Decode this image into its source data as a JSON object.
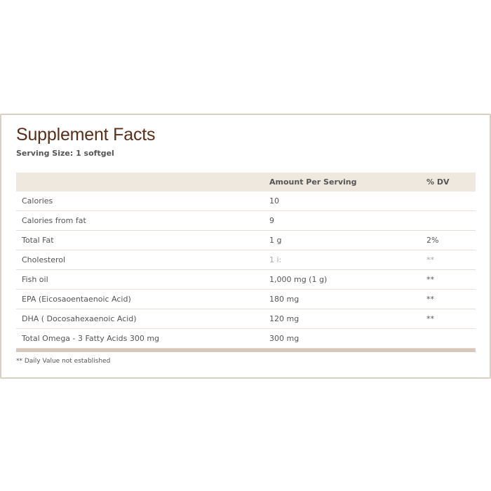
{
  "title": "Supplement Facts",
  "serving_size": "Serving Size: 1 softgel",
  "headers": [
    "",
    "Amount Per Serving",
    "% DV"
  ],
  "rows": [
    {
      "name": "Calories",
      "amount": "10",
      "dv": ""
    },
    {
      "name": "Calories from fat",
      "amount": "9",
      "dv": ""
    },
    {
      "name": "Total Fat",
      "amount": "1 g",
      "dv": "2%"
    },
    {
      "name": "Cholesterol",
      "amount": "1 i:",
      "dv": "**"
    },
    {
      "name": "Fish oil",
      "amount": "1,000 mg (1 g)",
      "dv": "**"
    },
    {
      "name": "EPA (Eicosaoentaenoic Acid)",
      "amount": "180 mg",
      "dv": "**"
    },
    {
      "name": "DHA ( Docosahexaenoic Acid)",
      "amount": "120 mg",
      "dv": "**"
    },
    {
      "name": "Total Omega - 3 Fatty Acids 300 mg",
      "amount": "300 mg",
      "dv": ""
    }
  ],
  "footnote": "** Daily Value not established"
}
